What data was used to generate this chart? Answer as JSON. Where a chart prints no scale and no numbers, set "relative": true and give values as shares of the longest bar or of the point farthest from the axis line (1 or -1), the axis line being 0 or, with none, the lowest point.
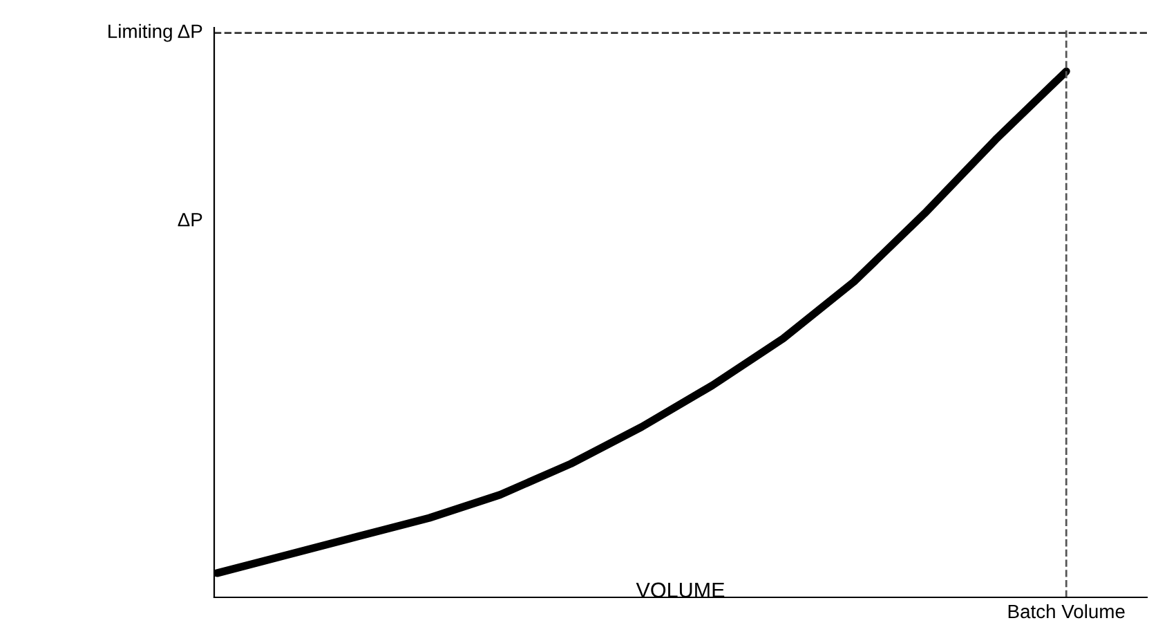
{
  "chart_data": {
    "type": "line",
    "relative": true,
    "xlabel": "VOLUME",
    "ylabel": "ΔP",
    "categories": [
      null,
      null,
      null,
      null,
      null,
      null,
      null,
      null,
      null,
      null,
      null,
      null,
      null
    ],
    "series": [
      {
        "color": "#000000",
        "values": [
          0.046,
          0.081,
          0.116,
          0.151,
          0.195,
          0.254,
          0.324,
          0.403,
          0.492,
          0.6,
          0.73,
          0.87,
          1
        ]
      }
    ],
    "ref_lines": [
      {
        "axis": "y",
        "value": 1.073,
        "label": "Limiting ΔP",
        "line_style": "dashed",
        "color": "#333333"
      },
      {
        "axis": "x",
        "value": "Batch Volume",
        "line_style": "dashed",
        "color": "#555555"
      }
    ],
    "grid": false,
    "legend": false,
    "marker": "none",
    "line_style": "solid"
  }
}
